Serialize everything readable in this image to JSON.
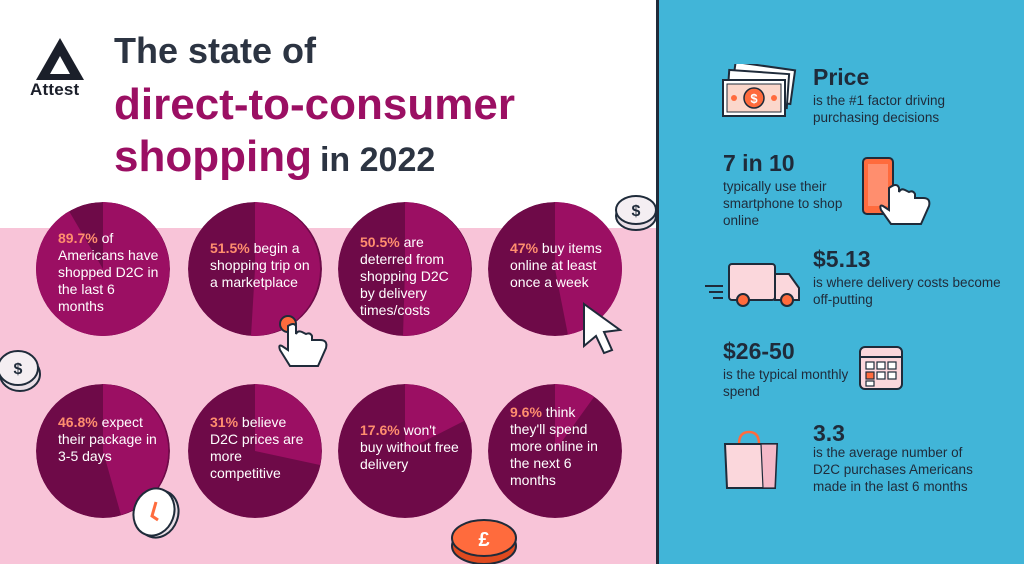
{
  "brand": {
    "name": "Attest"
  },
  "title": {
    "line1": "The state of",
    "line2": "direct-to-consumer",
    "line3": "shopping",
    "line3_suffix": "in 2022"
  },
  "circles": [
    {
      "number": "89.7%",
      "text": " of Americans have shopped D2C in the last 6 months"
    },
    {
      "number": "51.5%",
      "text": " begin a shopping trip on a marketplace"
    },
    {
      "number": "50.5%",
      "text": " are deterred from shopping D2C by delivery times/costs"
    },
    {
      "number": "47%",
      "text": " buy items online at least once a week"
    },
    {
      "number": "46.8%",
      "text": " expect their package in 3-5 days"
    },
    {
      "number": "31%",
      "text": " believe D2C prices are more competitive"
    },
    {
      "number": "17.6%",
      "text": " won't buy without free delivery"
    },
    {
      "number": "9.6%",
      "text": " think they'll spend more online in the next 6 months"
    }
  ],
  "stats": [
    {
      "head": "Price",
      "body": "is the #1 factor driving purchasing decisions",
      "icon": "cash-icon"
    },
    {
      "head": "7 in 10",
      "body": "typically use their smartphone to shop online",
      "icon": "smartphone-icon"
    },
    {
      "head": "$5.13",
      "body": "is where delivery costs become off-putting",
      "icon": "delivery-truck-icon"
    },
    {
      "head": "$26-50",
      "body": "is the typical monthly spend",
      "icon": "calendar-icon"
    },
    {
      "head": "3.3",
      "body": "is the average number of D2C purchases Americans made in the last 6 months",
      "icon": "shopping-bag-icon"
    }
  ],
  "colors": {
    "accent_magenta": "#9b0f63",
    "dark_magenta": "#6e0a48",
    "highlight_orange": "#ff8e6e",
    "pink_bg": "#f8c4d8",
    "blue_panel": "#41b5d8",
    "navy_text": "#1f2b3a"
  }
}
